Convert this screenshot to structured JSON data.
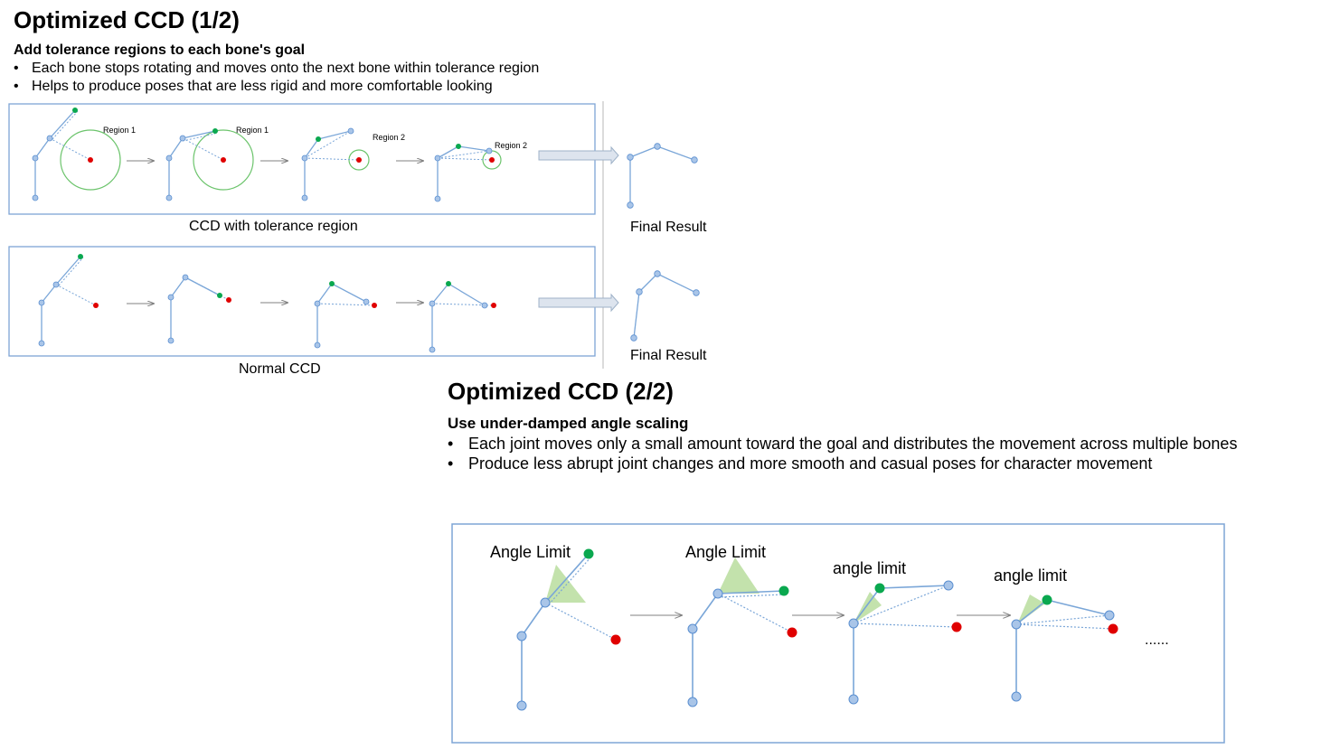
{
  "part1": {
    "title": "Optimized CCD (1/2)",
    "subtitle": "Add tolerance regions to each bone's goal",
    "bullets": [
      "Each bone stops rotating and moves onto the next bone within tolerance region",
      "Helps to produce poses that are less rigid and more comfortable looking"
    ],
    "top_diagram": {
      "region_labels": [
        "Region 1",
        "Region 1",
        "Region 2",
        "Region 2"
      ],
      "caption": "CCD with tolerance region",
      "result_label": "Final Result"
    },
    "bottom_diagram": {
      "caption": "Normal CCD",
      "result_label": "Final Result"
    }
  },
  "part2": {
    "title": "Optimized CCD (2/2)",
    "subtitle": "Use under-damped angle scaling",
    "bullets": [
      "Each joint moves only a small amount toward the goal and distributes the movement across multiple bones",
      "Produce less abrupt joint changes and more smooth and casual poses for character movement"
    ],
    "diagram": {
      "labels": [
        "Angle Limit",
        "Angle Limit",
        "angle limit",
        "angle limit"
      ],
      "ellipsis": "......"
    }
  },
  "colors": {
    "joint_fill": "#a9c5e8",
    "joint_stroke": "#5b8fd0",
    "bone": "#7aa6d8",
    "goal_red": "#e00000",
    "effector_green": "#0aa84f",
    "tolerance_ring": "#6cc46c",
    "angle_wedge": "#b9dd9e",
    "frame_border": "#7ea5d6",
    "arrow": "#808080"
  }
}
